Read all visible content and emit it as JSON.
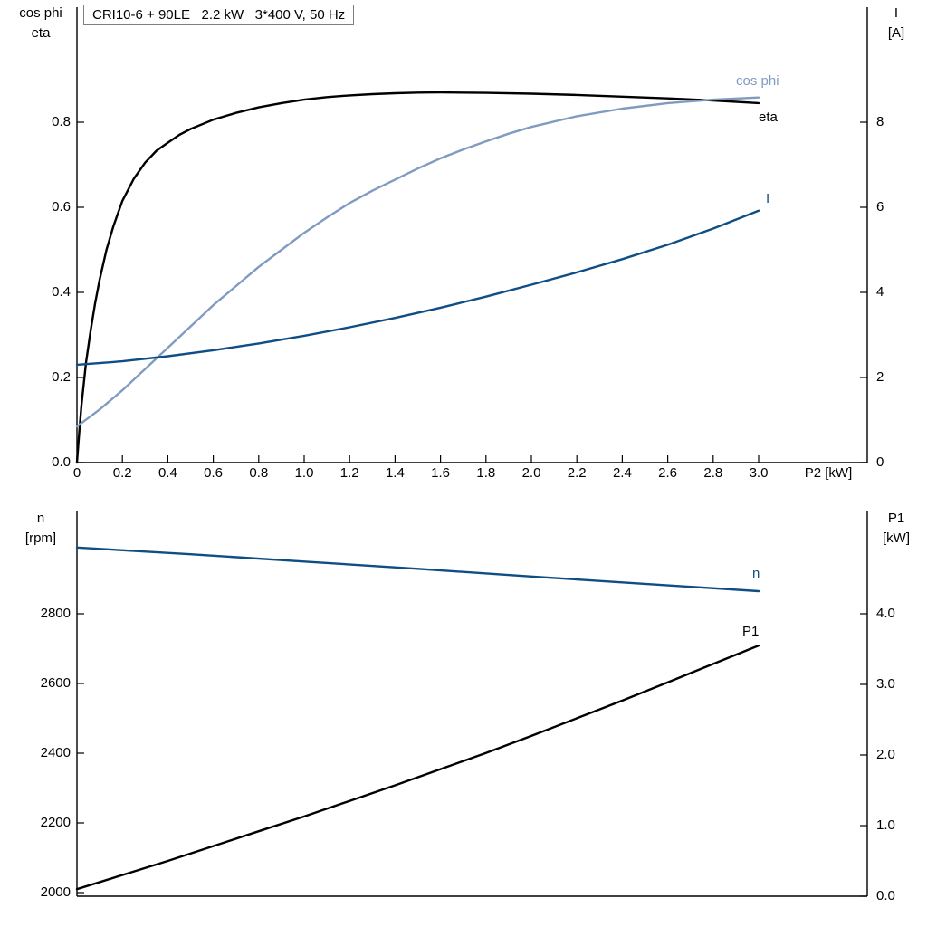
{
  "title_box": "CRI10-6 + 90LE   2.2 kW   3*400 V, 50 Hz",
  "colors": {
    "curve_black": "#000000",
    "curve_dark_blue": "#0e4e85",
    "curve_light_blue": "#7f9cc0",
    "axis": "#000000",
    "title_border": "#7f7f7f"
  },
  "chart_data": [
    {
      "type": "line",
      "title": "CRI10-6 + 90LE   2.2 kW   3*400 V, 50 Hz",
      "xlabel": "P2 [kW]",
      "grid": false,
      "legend_position": "inline-end-of-curve",
      "x_ticks": {
        "values": [
          0,
          0.2,
          0.4,
          0.6,
          0.8,
          1.0,
          1.2,
          1.4,
          1.6,
          1.8,
          2.0,
          2.2,
          2.4,
          2.6,
          2.8,
          3.0
        ],
        "labels": [
          "0",
          "0.2",
          "0.4",
          "0.6",
          "0.8",
          "1.0",
          "1.2",
          "1.4",
          "1.6",
          "1.8",
          "2.0",
          "2.2",
          "2.4",
          "2.6",
          "2.8",
          "3.0"
        ]
      },
      "xlim": [
        0,
        3.48
      ],
      "left_axis": {
        "header": [
          "cos phi",
          "eta"
        ],
        "range": [
          0,
          1.07
        ],
        "ticks": {
          "values": [
            0.0,
            0.2,
            0.4,
            0.6,
            0.8
          ],
          "labels": [
            "0.0",
            "0.2",
            "0.4",
            "0.6",
            "0.8"
          ]
        }
      },
      "right_axis": {
        "header": [
          "I",
          "[A]"
        ],
        "range": [
          0,
          10.7
        ],
        "ticks": {
          "values": [
            0,
            2,
            4,
            6,
            8
          ],
          "labels": [
            "0",
            "2",
            "4",
            "6",
            "8"
          ]
        }
      },
      "series": [
        {
          "name": "eta",
          "label": "eta",
          "axis": "left",
          "color": "curve_black",
          "points": [
            [
              0,
              0
            ],
            [
              0.01,
              0.07
            ],
            [
              0.02,
              0.135
            ],
            [
              0.04,
              0.235
            ],
            [
              0.06,
              0.31
            ],
            [
              0.08,
              0.375
            ],
            [
              0.1,
              0.43
            ],
            [
              0.13,
              0.5
            ],
            [
              0.16,
              0.555
            ],
            [
              0.2,
              0.615
            ],
            [
              0.25,
              0.667
            ],
            [
              0.3,
              0.705
            ],
            [
              0.35,
              0.733
            ],
            [
              0.4,
              0.752
            ],
            [
              0.45,
              0.77
            ],
            [
              0.5,
              0.784
            ],
            [
              0.6,
              0.806
            ],
            [
              0.7,
              0.822
            ],
            [
              0.8,
              0.835
            ],
            [
              0.9,
              0.845
            ],
            [
              1.0,
              0.853
            ],
            [
              1.1,
              0.859
            ],
            [
              1.2,
              0.863
            ],
            [
              1.3,
              0.866
            ],
            [
              1.4,
              0.868
            ],
            [
              1.5,
              0.8695
            ],
            [
              1.6,
              0.87
            ],
            [
              1.8,
              0.869
            ],
            [
              2.0,
              0.867
            ],
            [
              2.2,
              0.864
            ],
            [
              2.4,
              0.86
            ],
            [
              2.6,
              0.856
            ],
            [
              2.8,
              0.851
            ],
            [
              3.0,
              0.845
            ]
          ]
        },
        {
          "name": "cos phi",
          "label": "cos phi",
          "axis": "left",
          "color": "curve_light_blue",
          "points": [
            [
              0,
              0.085
            ],
            [
              0.1,
              0.125
            ],
            [
              0.2,
              0.17
            ],
            [
              0.3,
              0.22
            ],
            [
              0.4,
              0.27
            ],
            [
              0.5,
              0.32
            ],
            [
              0.6,
              0.37
            ],
            [
              0.7,
              0.415
            ],
            [
              0.8,
              0.46
            ],
            [
              0.9,
              0.5
            ],
            [
              1.0,
              0.54
            ],
            [
              1.1,
              0.576
            ],
            [
              1.2,
              0.61
            ],
            [
              1.3,
              0.639
            ],
            [
              1.4,
              0.665
            ],
            [
              1.5,
              0.691
            ],
            [
              1.6,
              0.715
            ],
            [
              1.7,
              0.736
            ],
            [
              1.8,
              0.755
            ],
            [
              1.9,
              0.773
            ],
            [
              2.0,
              0.789
            ],
            [
              2.2,
              0.814
            ],
            [
              2.4,
              0.832
            ],
            [
              2.6,
              0.845
            ],
            [
              2.8,
              0.853
            ],
            [
              3.0,
              0.858
            ]
          ]
        },
        {
          "name": "I",
          "label": "I",
          "axis": "right",
          "color": "curve_dark_blue",
          "points": [
            [
              0,
              2.3
            ],
            [
              0.2,
              2.38
            ],
            [
              0.4,
              2.5
            ],
            [
              0.6,
              2.64
            ],
            [
              0.8,
              2.8
            ],
            [
              1.0,
              2.98
            ],
            [
              1.2,
              3.18
            ],
            [
              1.4,
              3.4
            ],
            [
              1.6,
              3.64
            ],
            [
              1.8,
              3.9
            ],
            [
              2.0,
              4.18
            ],
            [
              2.2,
              4.47
            ],
            [
              2.4,
              4.78
            ],
            [
              2.6,
              5.12
            ],
            [
              2.8,
              5.5
            ],
            [
              3.0,
              5.92
            ]
          ]
        }
      ]
    },
    {
      "type": "line",
      "title": "",
      "xlabel": "",
      "grid": false,
      "x_ticks": {
        "values": [],
        "labels": []
      },
      "xlim": [
        0,
        3.48
      ],
      "left_axis": {
        "header": [
          "n",
          "[rpm]"
        ],
        "range": [
          1990,
          3090
        ],
        "ticks": {
          "values": [
            2000,
            2200,
            2400,
            2600,
            2800
          ],
          "labels": [
            "2000",
            "2200",
            "2400",
            "2600",
            "2800"
          ]
        }
      },
      "right_axis": {
        "header": [
          "P1",
          "[kW]"
        ],
        "range": [
          0,
          5.45
        ],
        "ticks": {
          "values": [
            0.0,
            1.0,
            2.0,
            3.0,
            4.0
          ],
          "labels": [
            "0.0",
            "1.0",
            "2.0",
            "3.0",
            "4.0"
          ]
        }
      },
      "series": [
        {
          "name": "n",
          "label": "n",
          "axis": "left",
          "color": "curve_dark_blue",
          "points": [
            [
              0,
              2990
            ],
            [
              0.5,
              2971
            ],
            [
              1.0,
              2950
            ],
            [
              1.5,
              2929
            ],
            [
              2.0,
              2907
            ],
            [
              2.5,
              2886
            ],
            [
              3.0,
              2865
            ]
          ]
        },
        {
          "name": "P1",
          "label": "P1",
          "axis": "right",
          "color": "curve_black",
          "points": [
            [
              0,
              0.1
            ],
            [
              0.2,
              0.3
            ],
            [
              0.4,
              0.5
            ],
            [
              0.6,
              0.71
            ],
            [
              0.8,
              0.92
            ],
            [
              1.0,
              1.13
            ],
            [
              1.2,
              1.35
            ],
            [
              1.4,
              1.57
            ],
            [
              1.6,
              1.8
            ],
            [
              1.8,
              2.03
            ],
            [
              2.0,
              2.27
            ],
            [
              2.2,
              2.52
            ],
            [
              2.4,
              2.77
            ],
            [
              2.6,
              3.03
            ],
            [
              2.8,
              3.29
            ],
            [
              3.0,
              3.55
            ]
          ]
        }
      ]
    }
  ]
}
